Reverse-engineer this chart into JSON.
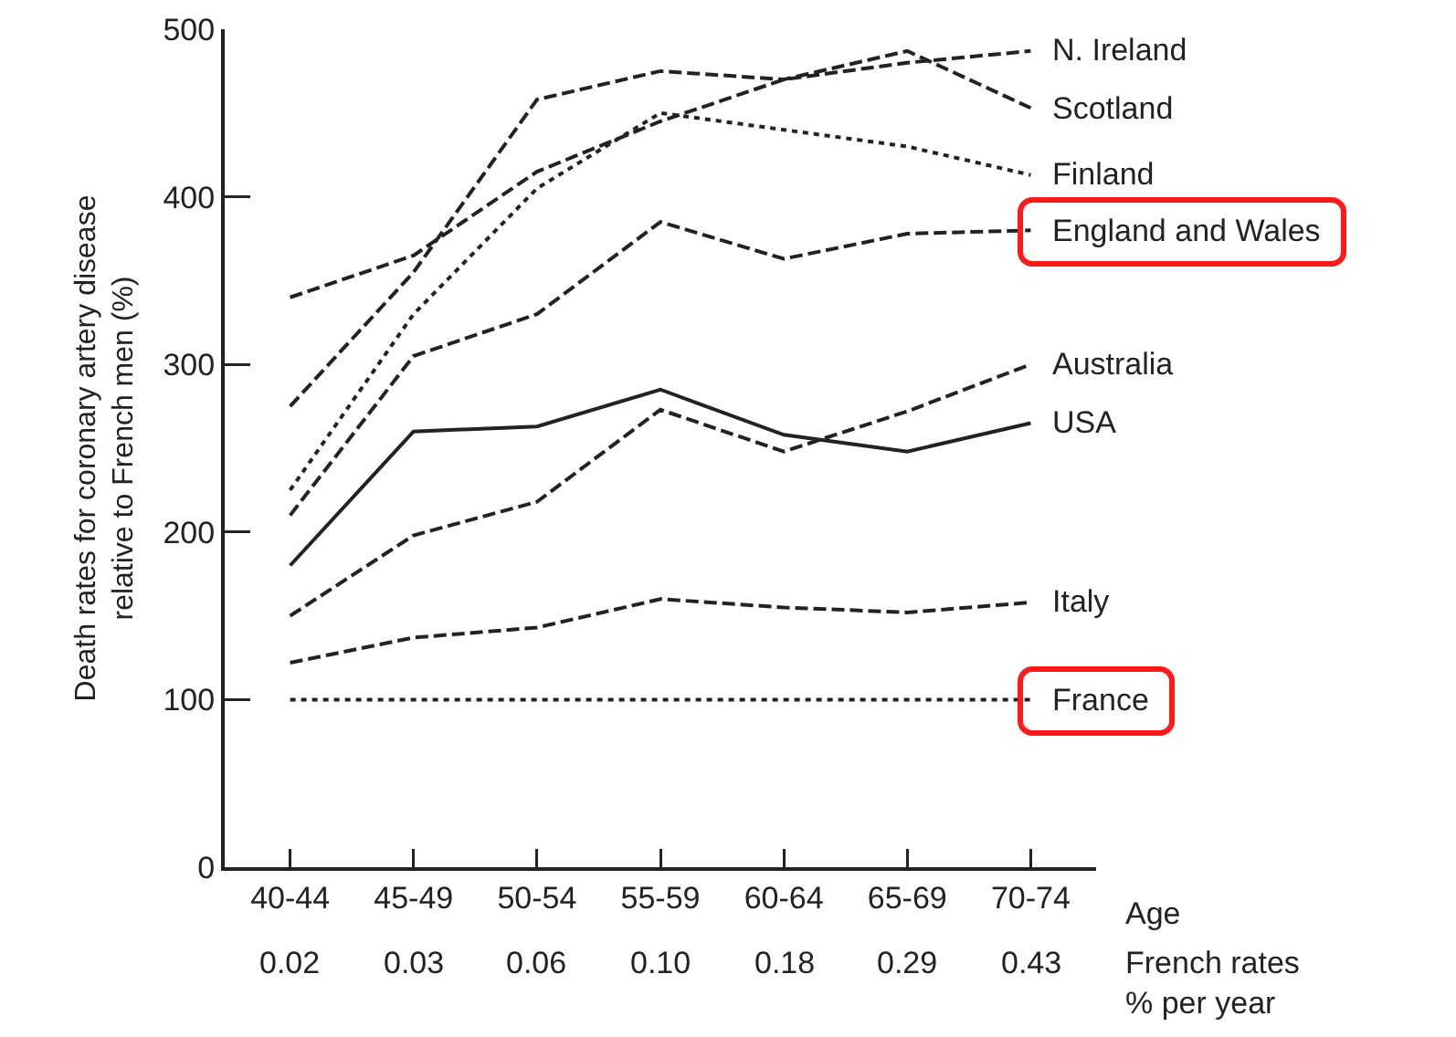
{
  "chart_data": {
    "type": "line",
    "xlabel": "Age",
    "ylabel": "Death rates for coronary artery disease\nrelative to French men (%)",
    "categories": [
      "40-44",
      "45-49",
      "50-54",
      "55-59",
      "60-64",
      "65-69",
      "70-74"
    ],
    "series": [
      {
        "name": "N. Ireland",
        "color": "#222222",
        "line_style": "dashed",
        "values": [
          340,
          365,
          415,
          445,
          470,
          480,
          487
        ]
      },
      {
        "name": "Scotland",
        "color": "#222222",
        "line_style": "dashed",
        "values": [
          275,
          355,
          458,
          475,
          470,
          487,
          453
        ]
      },
      {
        "name": "Finland",
        "color": "#222222",
        "line_style": "dotted",
        "values": [
          225,
          330,
          405,
          450,
          440,
          430,
          413
        ]
      },
      {
        "name": "England and Wales",
        "color": "#222222",
        "line_style": "dashed",
        "values": [
          210,
          305,
          330,
          385,
          363,
          378,
          380
        ]
      },
      {
        "name": "Australia",
        "color": "#222222",
        "line_style": "dashed",
        "values": [
          150,
          198,
          218,
          273,
          248,
          272,
          300
        ]
      },
      {
        "name": "USA",
        "color": "#222222",
        "line_style": "solid",
        "values": [
          180,
          260,
          263,
          285,
          258,
          248,
          265
        ]
      },
      {
        "name": "Italy",
        "color": "#222222",
        "line_style": "dashed",
        "values": [
          122,
          137,
          143,
          160,
          155,
          152,
          158
        ]
      },
      {
        "name": "France",
        "color": "#222222",
        "line_style": "dotted",
        "values": [
          100,
          100,
          100,
          100,
          100,
          100,
          100
        ]
      }
    ],
    "annotations": [
      "0.02",
      "0.03",
      "0.06",
      "0.10",
      "0.18",
      "0.29",
      "0.43",
      "French rates\n% per year"
    ],
    "ylim": [
      0,
      500
    ],
    "yticks": [
      0,
      100,
      200,
      300,
      400,
      500
    ],
    "grid": false,
    "legend": false,
    "marker": "none"
  }
}
